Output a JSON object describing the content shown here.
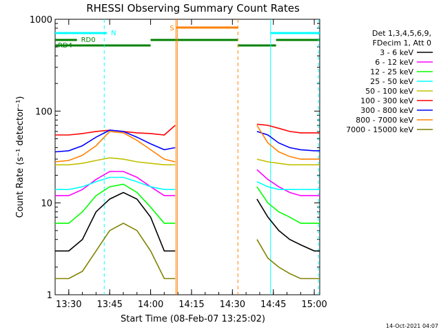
{
  "chart_data": {
    "type": "line",
    "title": "RHESSI Observing Summary Count Rates",
    "xlabel": "Start Time (08-Feb-07 13:25:02)",
    "ylabel": "Count Rate (s⁻¹ detector⁻¹)",
    "yscale": "log",
    "ylim": [
      1,
      1000
    ],
    "xlim_minutes_after_1325": [
      0,
      97
    ],
    "x_tick_labels": [
      "13:30",
      "13:45",
      "14:00",
      "14:15",
      "14:30",
      "14:45",
      "15:00"
    ],
    "x_tick_minutes_after_1325": [
      5,
      20,
      35,
      50,
      65,
      80,
      95
    ],
    "y_tick_labels": [
      "1",
      "10",
      "100",
      "1000"
    ],
    "y_tick_values": [
      1,
      10,
      100,
      1000
    ],
    "legend_title_lines": [
      "Det 1,3,4,5,6,9,",
      "FDecim 1, Att 0"
    ],
    "legend_position": "right",
    "footer_timestamp": "14-Oct-2021 04:07",
    "data_gap_minutes": [
      45,
      74
    ],
    "annotations": [
      {
        "label": "N",
        "color": "#00ffff"
      },
      {
        "label": "RD0",
        "color": "#008000"
      },
      {
        "label": "RD4",
        "color": "#008000"
      },
      {
        "label": "S",
        "color": "#ff8000"
      }
    ],
    "series": [
      {
        "name": "3 - 6 keV",
        "color": "#000000",
        "x": [
          0,
          5,
          10,
          15,
          20,
          25,
          30,
          35,
          40,
          44,
          74,
          78,
          82,
          86,
          90,
          95,
          97
        ],
        "values": [
          3,
          3,
          4,
          8,
          11,
          13,
          11,
          7,
          3,
          3,
          11,
          7,
          5,
          4,
          3.5,
          3,
          3
        ]
      },
      {
        "name": "6 - 12 keV",
        "color": "#ff00ff",
        "x": [
          0,
          5,
          10,
          15,
          20,
          25,
          30,
          35,
          40,
          44,
          74,
          78,
          82,
          86,
          90,
          95,
          97
        ],
        "values": [
          12,
          12,
          14,
          18,
          22,
          22,
          19,
          15,
          12,
          12,
          23,
          18,
          15,
          13,
          12,
          12,
          12
        ]
      },
      {
        "name": "12 - 25 keV",
        "color": "#00ff00",
        "x": [
          0,
          5,
          10,
          15,
          20,
          25,
          30,
          35,
          40,
          44,
          74,
          78,
          82,
          86,
          90,
          95,
          97
        ],
        "values": [
          6,
          6,
          8,
          12,
          15,
          16,
          13,
          9,
          6,
          6,
          15,
          10,
          8,
          7,
          6,
          6,
          6
        ]
      },
      {
        "name": "25 - 50 keV",
        "color": "#00ffff",
        "x": [
          0,
          5,
          10,
          15,
          20,
          25,
          30,
          35,
          40,
          44,
          74,
          78,
          82,
          86,
          90,
          95,
          97
        ],
        "values": [
          14,
          14,
          15,
          17,
          19,
          19,
          17,
          15,
          14,
          14,
          17,
          15,
          14,
          14,
          14,
          14,
          14
        ]
      },
      {
        "name": "50 - 100 keV",
        "color": "#c0c000",
        "x": [
          0,
          5,
          10,
          15,
          20,
          25,
          30,
          35,
          40,
          44,
          74,
          78,
          82,
          86,
          90,
          95,
          97
        ],
        "values": [
          26,
          26,
          27,
          29,
          31,
          30,
          28,
          27,
          26,
          26,
          30,
          28,
          27,
          26,
          26,
          26,
          26
        ]
      },
      {
        "name": "100 - 300 keV",
        "color": "#ff0000",
        "x": [
          0,
          5,
          10,
          15,
          20,
          25,
          30,
          35,
          40,
          44,
          74,
          78,
          82,
          86,
          90,
          95,
          97
        ],
        "values": [
          55,
          55,
          57,
          60,
          62,
          60,
          58,
          57,
          55,
          70,
          72,
          70,
          65,
          60,
          58,
          58,
          58
        ]
      },
      {
        "name": "300 - 800 keV",
        "color": "#0000ff",
        "x": [
          0,
          5,
          10,
          15,
          20,
          25,
          30,
          35,
          40,
          44,
          74,
          78,
          82,
          86,
          90,
          95,
          97
        ],
        "values": [
          36,
          37,
          42,
          52,
          62,
          60,
          52,
          44,
          38,
          40,
          60,
          55,
          45,
          40,
          38,
          37,
          37
        ]
      },
      {
        "name": "800 - 7000 keV",
        "color": "#ff8000",
        "x": [
          0,
          5,
          10,
          15,
          20,
          25,
          30,
          35,
          40,
          44,
          74,
          78,
          82,
          86,
          90,
          95,
          97
        ],
        "values": [
          28,
          29,
          33,
          42,
          60,
          58,
          48,
          38,
          30,
          28,
          70,
          45,
          36,
          32,
          30,
          30,
          30
        ]
      },
      {
        "name": "7000 - 15000 keV",
        "color": "#808000",
        "x": [
          0,
          5,
          10,
          15,
          20,
          25,
          30,
          35,
          40,
          44,
          74,
          78,
          82,
          86,
          90,
          95,
          97
        ],
        "values": [
          1.5,
          1.5,
          1.8,
          3,
          5,
          6,
          5,
          3,
          1.5,
          1.5,
          4,
          2.5,
          2,
          1.7,
          1.5,
          1.5,
          1.5
        ]
      }
    ]
  }
}
